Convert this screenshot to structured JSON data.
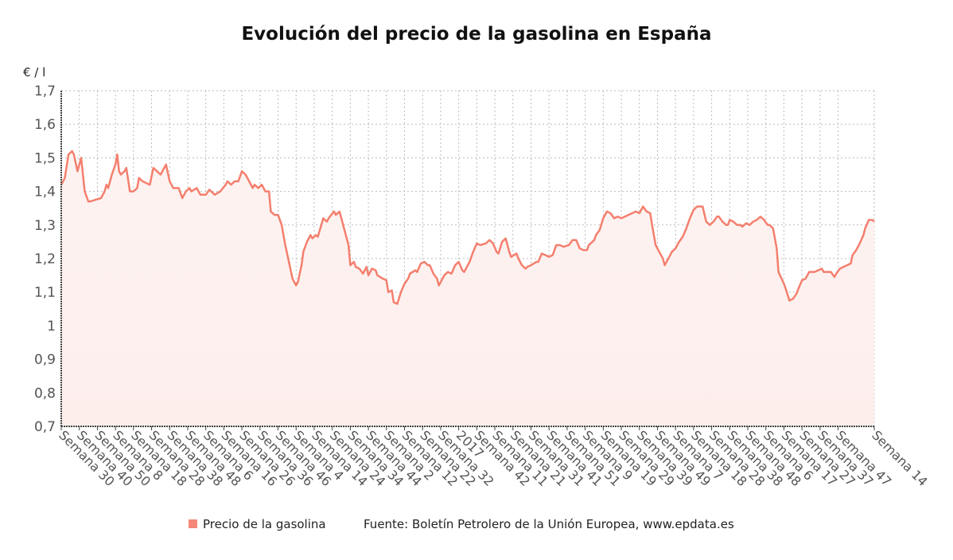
{
  "chart_data": {
    "type": "line",
    "title": "Evolución del precio de la gasolina en España",
    "ylabel": "€ / l",
    "xlabel": "",
    "ylim": [
      0.7,
      1.7
    ],
    "yticks": [
      "0,7",
      "0,8",
      "0,9",
      "1",
      "1,1",
      "1,2",
      "1,3",
      "1,4",
      "1,5",
      "1,6",
      "1,7"
    ],
    "xlim": [
      0,
      450
    ],
    "xtick_positions": [
      0,
      10,
      20,
      30,
      40,
      50,
      60,
      70,
      80,
      90,
      100,
      110,
      120,
      130,
      140,
      150,
      160,
      170,
      180,
      190,
      200,
      210,
      220,
      230,
      240,
      250,
      260,
      270,
      280,
      290,
      300,
      310,
      320,
      330,
      340,
      350,
      360,
      370,
      380,
      390,
      400,
      410,
      420,
      430,
      450
    ],
    "xticks": [
      "Semana 30",
      "Semana 40",
      "Semana 50",
      "Semana 8",
      "Semana 18",
      "Semana 28",
      "Semana 38",
      "Semana 48",
      "Semana 6",
      "Semana 16",
      "Semana 26",
      "Semana 36",
      "Semana 46",
      "Semana 4",
      "Semana 14",
      "Semana 24",
      "Semana 34",
      "Semana 44",
      "Semana 2",
      "Semana 12",
      "Semana 22",
      "Semana 32",
      "2017",
      "Semana 42",
      "Semana 11",
      "Semana 21",
      "Semana 31",
      "Semana 41",
      "Semana 51",
      "Semana 9",
      "Semana 19",
      "Semana 29",
      "Semana 39",
      "Semana 49",
      "Semana 7",
      "Semana 18",
      "Semana 28",
      "Semana 38",
      "Semana 48",
      "Semana 6",
      "Semana 17",
      "Semana 27",
      "Semana 37",
      "Semana 47",
      "Semana 14"
    ],
    "grid": true,
    "legend_position": "bottom",
    "series": [
      {
        "name": "Precio de la gasolina",
        "color": "#f47f6e",
        "x": [
          0,
          2,
          4,
          6,
          7,
          9,
          10,
          11,
          13,
          15,
          16,
          19,
          22,
          24,
          25,
          26,
          28,
          30,
          31,
          32,
          33,
          35,
          36,
          38,
          40,
          42,
          43,
          45,
          49,
          51,
          53,
          55,
          58,
          60,
          62,
          65,
          67,
          69,
          71,
          72,
          75,
          77,
          80,
          82,
          85,
          88,
          91,
          92,
          94,
          96,
          98,
          100,
          102,
          104,
          106,
          107,
          109,
          111,
          113,
          115,
          116,
          118,
          120,
          122,
          124,
          126,
          128,
          130,
          131,
          133,
          134,
          136,
          138,
          139,
          141,
          142,
          144,
          145,
          147,
          148,
          151,
          152,
          154,
          157,
          159,
          160,
          162,
          163,
          165,
          167,
          169,
          170,
          172,
          174,
          175,
          178,
          180,
          181,
          183,
          184,
          186,
          188,
          190,
          192,
          193,
          196,
          197,
          199,
          201,
          203,
          204,
          206,
          208,
          209,
          212,
          214,
          216,
          218,
          220,
          222,
          223,
          226,
          228,
          230,
          232,
          235,
          237,
          239,
          241,
          242,
          244,
          246,
          248,
          249,
          252,
          253,
          255,
          257,
          258,
          260,
          263,
          264,
          266,
          268,
          270,
          272,
          274,
          276,
          278,
          281,
          283,
          285,
          287,
          289,
          291,
          292,
          295,
          296,
          298,
          300,
          302,
          304,
          306,
          308,
          310,
          312,
          314,
          316,
          318,
          320,
          322,
          324,
          326,
          327,
          329,
          331,
          333,
          334,
          337,
          338,
          340,
          342,
          344,
          346,
          348,
          350,
          352,
          354,
          355,
          357,
          359,
          361,
          363,
          364,
          366,
          368,
          369,
          370,
          372,
          374,
          376,
          377,
          379,
          381,
          383,
          385,
          387,
          389,
          391,
          392,
          394,
          396,
          397,
          400,
          401,
          403,
          405,
          407,
          408,
          410,
          412,
          414,
          415,
          417,
          419,
          421,
          422,
          424,
          426,
          428,
          429,
          431,
          433,
          435,
          437,
          438,
          440,
          442,
          444,
          445,
          447,
          449,
          450
        ],
        "y": [
          1.42,
          1.44,
          1.51,
          1.52,
          1.51,
          1.46,
          1.48,
          1.5,
          1.4,
          1.37,
          1.37,
          1.375,
          1.38,
          1.4,
          1.42,
          1.41,
          1.45,
          1.48,
          1.51,
          1.46,
          1.45,
          1.46,
          1.47,
          1.4,
          1.4,
          1.41,
          1.44,
          1.43,
          1.42,
          1.47,
          1.46,
          1.45,
          1.48,
          1.43,
          1.41,
          1.41,
          1.38,
          1.4,
          1.41,
          1.4,
          1.41,
          1.39,
          1.39,
          1.405,
          1.39,
          1.4,
          1.42,
          1.43,
          1.42,
          1.43,
          1.43,
          1.46,
          1.45,
          1.43,
          1.41,
          1.42,
          1.41,
          1.42,
          1.4,
          1.4,
          1.34,
          1.33,
          1.33,
          1.3,
          1.24,
          1.19,
          1.14,
          1.12,
          1.13,
          1.18,
          1.22,
          1.25,
          1.27,
          1.26,
          1.27,
          1.265,
          1.3,
          1.32,
          1.31,
          1.32,
          1.34,
          1.33,
          1.34,
          1.28,
          1.24,
          1.18,
          1.19,
          1.175,
          1.17,
          1.155,
          1.175,
          1.15,
          1.17,
          1.165,
          1.15,
          1.14,
          1.135,
          1.1,
          1.105,
          1.07,
          1.065,
          1.1,
          1.125,
          1.14,
          1.155,
          1.165,
          1.16,
          1.185,
          1.19,
          1.18,
          1.18,
          1.155,
          1.14,
          1.12,
          1.15,
          1.16,
          1.155,
          1.18,
          1.19,
          1.165,
          1.16,
          1.19,
          1.22,
          1.245,
          1.24,
          1.245,
          1.255,
          1.245,
          1.22,
          1.215,
          1.25,
          1.26,
          1.22,
          1.205,
          1.215,
          1.2,
          1.18,
          1.17,
          1.175,
          1.18,
          1.19,
          1.19,
          1.215,
          1.21,
          1.205,
          1.21,
          1.24,
          1.24,
          1.235,
          1.24,
          1.255,
          1.255,
          1.23,
          1.225,
          1.225,
          1.24,
          1.255,
          1.27,
          1.285,
          1.32,
          1.34,
          1.335,
          1.32,
          1.325,
          1.32,
          1.325,
          1.33,
          1.335,
          1.34,
          1.335,
          1.355,
          1.34,
          1.335,
          1.3,
          1.24,
          1.22,
          1.2,
          1.18,
          1.21,
          1.22,
          1.23,
          1.25,
          1.265,
          1.29,
          1.32,
          1.345,
          1.355,
          1.355,
          1.355,
          1.31,
          1.3,
          1.31,
          1.325,
          1.325,
          1.31,
          1.3,
          1.3,
          1.315,
          1.31,
          1.3,
          1.3,
          1.295,
          1.305,
          1.3,
          1.31,
          1.315,
          1.325,
          1.315,
          1.3,
          1.3,
          1.29,
          1.23,
          1.16,
          1.125,
          1.11,
          1.075,
          1.08,
          1.095,
          1.11,
          1.135,
          1.14,
          1.16,
          1.16,
          1.16,
          1.165,
          1.17,
          1.16,
          1.16,
          1.16,
          1.145,
          1.155,
          1.17,
          1.175,
          1.18,
          1.185,
          1.21,
          1.225,
          1.245,
          1.27,
          1.29,
          1.315,
          1.315,
          1.31
        ]
      }
    ],
    "source": "Fuente: Boletín Petrolero de la Unión Europea, www.epdata.es"
  }
}
